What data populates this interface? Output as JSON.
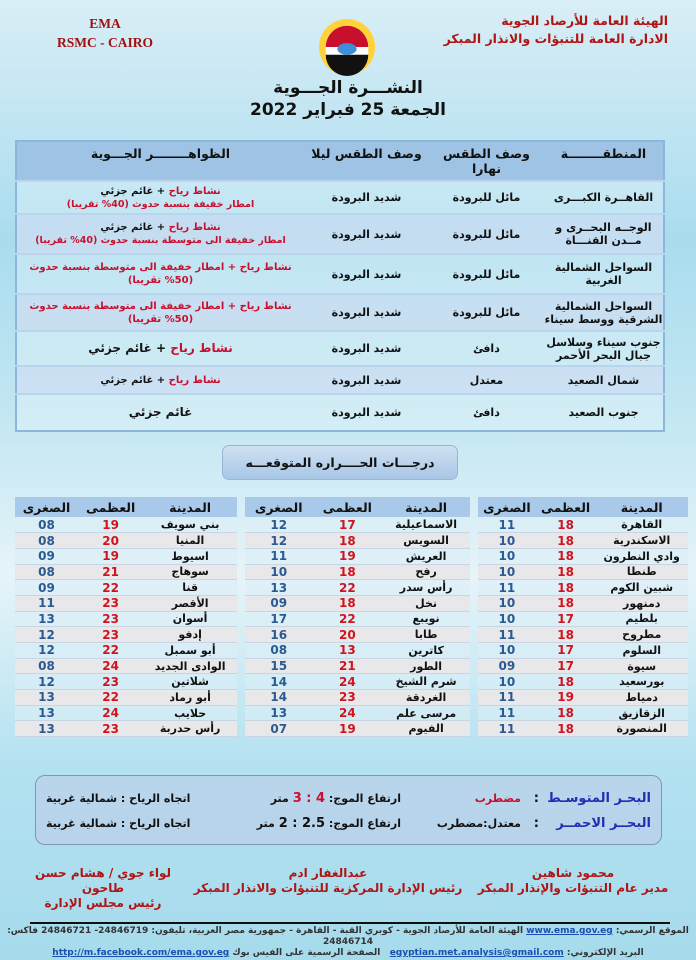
{
  "header": {
    "org_line1": "الهيئة العامة للأرصاد الجوية",
    "org_line2": "الادارة العامة للتنبؤات والانذار المبكر",
    "en_line1": "EMA",
    "en_line2": "RSMC - CAIRO",
    "logo_text": "EMA",
    "title": "النشـــرة الجـــوية",
    "date": "الجمعة 25 فبراير 2022"
  },
  "forecast": {
    "headers": [
      "المنطقــــــــة",
      "وصف الطقس نهارا",
      "وصف الطقس ليلا",
      "الظواهــــــــر الجـــوية"
    ],
    "rows": [
      {
        "region": "القاهــرة الكبـــرى",
        "day": "مائل للبرودة",
        "night": "شديد البرودة",
        "ph_red": "نشاط رياح",
        "ph_black": "+ غائم جزئي",
        "ph2_red": "امطار خفيفة بنسبة حدوث (40% تقريبا)"
      },
      {
        "region": "الوجــه البحــرى و مــدن القنـــاة",
        "day": "مائل للبرودة",
        "night": "شديد البرودة",
        "ph_red": "نشاط رياح",
        "ph_black": "+ غائم جزئي",
        "ph2_red": "امطار خفيفة الى متوسطة بنسبة حدوث (40% تقريبا)"
      },
      {
        "region": "السواحل الشمالية الغربية",
        "day": "مائل للبرودة",
        "night": "شديد البرودة",
        "ph_red": "نشاط رياح + امطار خفيفة الى متوسطة بنسبة حدوث (50% تقريبا)",
        "ph_black": "",
        "ph2_red": ""
      },
      {
        "region": "السواحل الشمالية الشرقية ووسط سيناء",
        "day": "مائل للبرودة",
        "night": "شديد البرودة",
        "ph_red": "نشاط رياح + امطار خفيفة الى متوسطة بنسبة حدوث (50% تقريبا)",
        "ph_black": "",
        "ph2_red": ""
      },
      {
        "region": "جنوب سيناء وسلاسل جبال البحر الأحمر",
        "day": "دافئ",
        "night": "شديد البرودة",
        "ph_red": "نشاط رياح",
        "ph_black": "+ غائم جزئي",
        "ph2_red": ""
      },
      {
        "region": "شمال الصعيد",
        "day": "معتدل",
        "night": "شديد البرودة",
        "ph_red": "نشاط رياح",
        "ph_black": "+ غائم جزئي",
        "ph2_red": ""
      },
      {
        "region": "جنوب الصعيد",
        "day": "دافئ",
        "night": "شديد البرودة",
        "ph_red": "",
        "ph_black": "غائم جزئي",
        "ph2_red": ""
      }
    ]
  },
  "temperatures": {
    "title": "درجـــات الحــــراره المتوقعـــه",
    "headers": [
      "المدينة",
      "العظمى",
      "الصغرى"
    ],
    "tables": [
      [
        [
          "القاهرة",
          "18",
          "11"
        ],
        [
          "الاسكندرية",
          "18",
          "10"
        ],
        [
          "وادي النطرون",
          "18",
          "10"
        ],
        [
          "طنطا",
          "18",
          "10"
        ],
        [
          "شبين الكوم",
          "18",
          "11"
        ],
        [
          "دمنهور",
          "18",
          "10"
        ],
        [
          "بلطيم",
          "17",
          "10"
        ],
        [
          "مطروح",
          "18",
          "11"
        ],
        [
          "السلوم",
          "17",
          "10"
        ],
        [
          "سيوة",
          "17",
          "09"
        ],
        [
          "بورسعيد",
          "18",
          "10"
        ],
        [
          "دمياط",
          "19",
          "11"
        ],
        [
          "الزقازيق",
          "18",
          "11"
        ],
        [
          "المنصورة",
          "18",
          "11"
        ]
      ],
      [
        [
          "الاسماعيلية",
          "17",
          "12"
        ],
        [
          "السويس",
          "18",
          "12"
        ],
        [
          "العريش",
          "19",
          "11"
        ],
        [
          "رفح",
          "18",
          "10"
        ],
        [
          "رأس سدر",
          "22",
          "13"
        ],
        [
          "نخل",
          "18",
          "09"
        ],
        [
          "نويبع",
          "22",
          "17"
        ],
        [
          "طابا",
          "20",
          "16"
        ],
        [
          "كاترين",
          "13",
          "08"
        ],
        [
          "الطور",
          "21",
          "15"
        ],
        [
          "شرم الشيخ",
          "24",
          "14"
        ],
        [
          "الغردقة",
          "23",
          "14"
        ],
        [
          "مرسى علم",
          "24",
          "13"
        ],
        [
          "الفيوم",
          "19",
          "07"
        ]
      ],
      [
        [
          "بني سويف",
          "19",
          "08"
        ],
        [
          "المنيا",
          "20",
          "08"
        ],
        [
          "اسيوط",
          "19",
          "09"
        ],
        [
          "سوهاج",
          "21",
          "08"
        ],
        [
          "قنا",
          "22",
          "09"
        ],
        [
          "الأقصر",
          "23",
          "11"
        ],
        [
          "أسوان",
          "23",
          "13"
        ],
        [
          "إدفو",
          "23",
          "12"
        ],
        [
          "أبو سمبل",
          "22",
          "12"
        ],
        [
          "الوادى الجديد",
          "24",
          "08"
        ],
        [
          "شلاتين",
          "23",
          "12"
        ],
        [
          "أبو رماد",
          "22",
          "13"
        ],
        [
          "حلايب",
          "24",
          "13"
        ],
        [
          "رأس حدربة",
          "23",
          "13"
        ]
      ]
    ]
  },
  "sea": [
    {
      "name": "البحـر المتوسـط",
      "state": "مضطرب",
      "wave_label": "ارتفاع الموج:",
      "wave": "3 : 4",
      "unit": "متر",
      "wind": "اتجاه الرياح : شمالية غربية"
    },
    {
      "name": "البحــر الاحمــر",
      "state": "معتدل:مضطرب",
      "wave_label": "ارتفاع الموج:",
      "wave": "2 : 2.5",
      "unit": "متر",
      "wind": "اتجاه الرياح : شمالية غربية"
    }
  ],
  "signatures": [
    {
      "name": "محمود شاهين",
      "role": "مدير عام التنبؤات والإنذار المبكر"
    },
    {
      "name": "عبدالغفار ادم",
      "role": "رئيس الإدارة المركزية للتنبؤات والانذار المبكر"
    },
    {
      "name": "لواء جوي / هشام حسن طاحون",
      "role": "رئيس مجلس الإدارة"
    }
  ],
  "footer": {
    "site_label": "الموقع الرسمي:",
    "site": "www.ema.gov.eg",
    "address": "الهيئة العامة للأرصاد الجوية - كوبري القبة - القاهرة - جمهورية مصر العربية، تليفون: 24846719- 24846721 فاكس: 24846714",
    "email_label": "البريد الإلكتروني:",
    "email": "egyptian.met.analysis@gmail.com",
    "fb_label": "الصفحة الرسمية على الفيس بوك",
    "fb": "http://m.facebook.com/ema.gov.eg"
  },
  "colors": {
    "accent_red": "#c8102e",
    "header_blue": "#9ec3e4",
    "min_blue": "#2a5a92",
    "sea_name_blue": "#1f2fb0"
  }
}
